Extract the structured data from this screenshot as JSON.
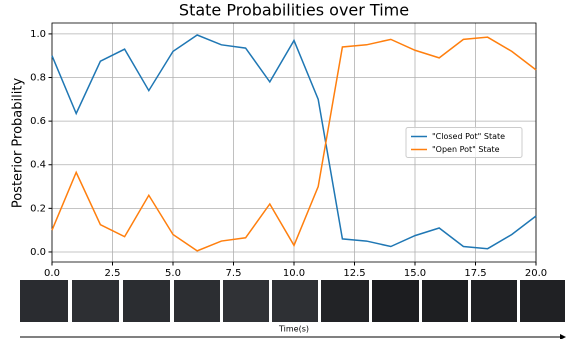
{
  "chart_data": {
    "type": "line",
    "title": "State Probabilities over Time",
    "ylabel": "Posterior Probability",
    "xlabel": "Time(s)",
    "x": [
      0,
      1,
      2,
      3,
      4,
      5,
      6,
      7,
      8,
      9,
      10,
      11,
      12,
      13,
      14,
      15,
      16,
      17,
      18,
      19,
      20
    ],
    "series": [
      {
        "name": "\"Closed Pot\" State",
        "color": "#1f77b4",
        "values": [
          0.9,
          0.635,
          0.875,
          0.93,
          0.74,
          0.92,
          0.995,
          0.95,
          0.935,
          0.78,
          0.97,
          0.7,
          0.06,
          0.05,
          0.025,
          0.075,
          0.11,
          0.025,
          0.015,
          0.08,
          0.165
        ]
      },
      {
        "name": "\"Open Pot\" State",
        "color": "#ff7f0e",
        "values": [
          0.1,
          0.365,
          0.125,
          0.07,
          0.26,
          0.08,
          0.005,
          0.05,
          0.065,
          0.22,
          0.03,
          0.3,
          0.94,
          0.95,
          0.975,
          0.925,
          0.89,
          0.975,
          0.985,
          0.92,
          0.835
        ]
      }
    ],
    "xlim": [
      0,
      20
    ],
    "xticks": [
      {
        "value": 0,
        "label": "0.0"
      },
      {
        "value": 2.5,
        "label": "2.5"
      },
      {
        "value": 5,
        "label": "5.0"
      },
      {
        "value": 7.5,
        "label": "7.5"
      },
      {
        "value": 10,
        "label": "10.0"
      },
      {
        "value": 12.5,
        "label": "12.5"
      },
      {
        "value": 15,
        "label": "15.0"
      },
      {
        "value": 17.5,
        "label": "17.5"
      },
      {
        "value": 20,
        "label": "20.0"
      }
    ],
    "ylim": [
      -0.046,
      1.05
    ],
    "yticks": [
      {
        "value": 0,
        "label": "0.0"
      },
      {
        "value": 0.2,
        "label": "0.2"
      },
      {
        "value": 0.4,
        "label": "0.4"
      },
      {
        "value": 0.6,
        "label": "0.6"
      },
      {
        "value": 0.8,
        "label": "0.8"
      },
      {
        "value": 1,
        "label": "1.0"
      }
    ],
    "grid": true,
    "legend": "center right"
  }
}
